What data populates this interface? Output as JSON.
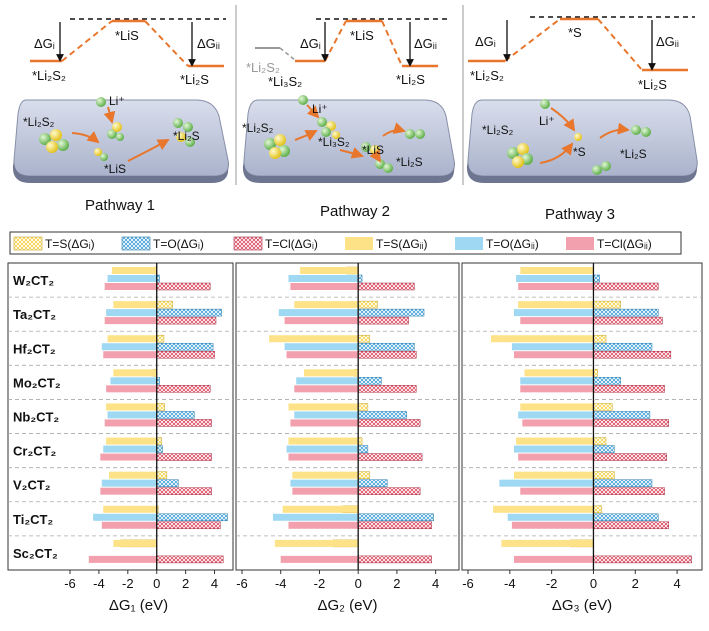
{
  "colors": {
    "S": "#f4d24a",
    "O": "#3f9fd6",
    "Cl": "#d9485f",
    "S_ii": "#fde287",
    "O_ii": "#9fd8f2",
    "Cl_ii": "#f2a0ad",
    "path_orange": "#e8772d",
    "surface": "#bfc8de",
    "sphere_green": "#7cc86a",
    "sphere_yellow": "#f4dd32"
  },
  "pathways": [
    {
      "caption": "Pathway 1",
      "levels": {
        "start": "*Li₂S₂",
        "mid": "*LiS",
        "end": "*Li₂S"
      },
      "dg_labels": {
        "first": "ΔGᵢ",
        "second": "ΔGᵢᵢ"
      },
      "surface_labels": {
        "a": "*Li₂S₂",
        "b": "Li⁺",
        "c": "*Li₂S",
        "d": "*LiS"
      }
    },
    {
      "caption": "Pathway 2",
      "levels": {
        "pre": "*Li₂S₂",
        "start": "*Li₃S₂",
        "mid": "*LiS",
        "end": "*Li₂S"
      },
      "dg_labels": {
        "first": "ΔGᵢ",
        "second": "ΔGᵢᵢ"
      },
      "surface_labels": {
        "a": "*Li₂S₂",
        "b": "Li⁺",
        "c": "*Li₃S₂",
        "d": "*LiS",
        "e": "*Li₂S"
      }
    },
    {
      "caption": "Pathway 3",
      "levels": {
        "start": "*Li₂S₂",
        "mid": "*S",
        "end": "*Li₂S"
      },
      "dg_labels": {
        "first": "ΔGᵢ",
        "second": "ΔGᵢᵢ"
      },
      "surface_labels": {
        "a": "*Li₂S₂",
        "b": "Li⁺",
        "c": "*S",
        "d": "*Li₂S"
      }
    }
  ],
  "legend": [
    {
      "label": "T=S(ΔGᵢ)",
      "key": "S_i"
    },
    {
      "label": "T=O(ΔGᵢ)",
      "key": "O_i"
    },
    {
      "label": "T=Cl(ΔGᵢ)",
      "key": "Cl_i"
    },
    {
      "label": "T=S(ΔGᵢᵢ)",
      "key": "S_ii"
    },
    {
      "label": "T=O(ΔGᵢᵢ)",
      "key": "O_ii"
    },
    {
      "label": "T=Cl(ΔGᵢᵢ)",
      "key": "Cl_ii"
    }
  ],
  "chart_data": {
    "type": "bar",
    "orientation": "horizontal",
    "categories": [
      "W₂CT₂",
      "Ta₂CT₂",
      "Hf₂CT₂",
      "Mo₂CT₂",
      "Nb₂CT₂",
      "Cr₂CT₂",
      "V₂CT₂",
      "Ti₂CT₂",
      "Sc₂CT₂"
    ],
    "series_keys": [
      "S_i",
      "O_i",
      "Cl_i",
      "S_ii",
      "O_ii",
      "Cl_ii"
    ],
    "xlim": [
      -6,
      5
    ],
    "xticks": [
      -6,
      -4,
      -2,
      0,
      2,
      4
    ],
    "panels": [
      {
        "xlabel": "ΔG₁ (eV)",
        "values": {
          "W₂CT₂": {
            "S_i": -0.15,
            "O_i": 0.2,
            "Cl_i": 3.7,
            "S_ii": -3.1,
            "O_ii": -3.4,
            "Cl_ii": -3.6
          },
          "Ta₂CT₂": {
            "S_i": 1.1,
            "O_i": 4.5,
            "Cl_i": 4.1,
            "S_ii": -3.0,
            "O_ii": -3.5,
            "Cl_ii": -3.6
          },
          "Hf₂CT₂": {
            "S_i": 0.5,
            "O_i": 3.9,
            "Cl_i": 4.0,
            "S_ii": -3.4,
            "O_ii": -3.8,
            "Cl_ii": -3.7
          },
          "Mo₂CT₂": {
            "S_i": -0.25,
            "O_i": 0.2,
            "Cl_i": 3.7,
            "S_ii": -3.0,
            "O_ii": -3.2,
            "Cl_ii": -3.5
          },
          "Nb₂CT₂": {
            "S_i": 0.55,
            "O_i": 2.6,
            "Cl_i": 3.8,
            "S_ii": -3.5,
            "O_ii": -3.4,
            "Cl_ii": -3.6
          },
          "Cr₂CT₂": {
            "S_i": 0.35,
            "O_i": 0.4,
            "Cl_i": 3.8,
            "S_ii": -3.5,
            "O_ii": -3.7,
            "Cl_ii": -3.9
          },
          "V₂CT₂": {
            "S_i": 0.7,
            "O_i": 1.5,
            "Cl_i": 3.8,
            "S_ii": -3.3,
            "O_ii": -3.8,
            "Cl_ii": -3.9
          },
          "Ti₂CT₂": {
            "S_i": 0.1,
            "O_i": 4.9,
            "Cl_i": 4.4,
            "S_ii": -3.7,
            "O_ii": -4.4,
            "Cl_ii": -3.8
          },
          "Sc₂CT₂": {
            "S_i": -2.5,
            "O_i": 0.0,
            "Cl_i": 4.6,
            "S_ii": -3.0,
            "O_ii": 0.0,
            "Cl_ii": -4.7
          }
        }
      },
      {
        "xlabel": "ΔG₂ (eV)",
        "values": {
          "W₂CT₂": {
            "S_i": -0.6,
            "O_i": 0.2,
            "Cl_i": 2.9,
            "S_ii": -3.0,
            "O_ii": -3.6,
            "Cl_ii": -3.5
          },
          "Ta₂CT₂": {
            "S_i": 1.0,
            "O_i": 3.4,
            "Cl_i": 2.6,
            "S_ii": -3.3,
            "O_ii": -4.1,
            "Cl_ii": -3.8
          },
          "Hf₂CT₂": {
            "S_i": 0.6,
            "O_i": 2.9,
            "Cl_i": 3.0,
            "S_ii": -4.6,
            "O_ii": -3.8,
            "Cl_ii": -3.7
          },
          "Mo₂CT₂": {
            "S_i": -0.2,
            "O_i": 1.2,
            "Cl_i": 3.0,
            "S_ii": -2.8,
            "O_ii": -3.2,
            "Cl_ii": -3.3
          },
          "Nb₂CT₂": {
            "S_i": 0.5,
            "O_i": 2.5,
            "Cl_i": 3.2,
            "S_ii": -3.6,
            "O_ii": -3.3,
            "Cl_ii": -3.5
          },
          "Cr₂CT₂": {
            "S_i": 0.2,
            "O_i": 0.5,
            "Cl_i": 3.3,
            "S_ii": -3.6,
            "O_ii": -3.7,
            "Cl_ii": -3.6
          },
          "V₂CT₂": {
            "S_i": 0.6,
            "O_i": 1.5,
            "Cl_i": 3.2,
            "S_ii": -3.4,
            "O_ii": -3.5,
            "Cl_ii": -3.4
          },
          "Ti₂CT₂": {
            "S_i": -0.8,
            "O_i": 3.9,
            "Cl_i": 3.8,
            "S_ii": -3.9,
            "O_ii": -4.4,
            "Cl_ii": -3.6
          },
          "Sc₂CT₂": {
            "S_i": -1.3,
            "O_i": 0.0,
            "Cl_i": 3.8,
            "S_ii": -4.3,
            "O_ii": 0.0,
            "Cl_ii": -4.0
          }
        }
      },
      {
        "xlabel": "ΔG₃ (eV)",
        "values": {
          "W₂CT₂": {
            "S_i": 0.0,
            "O_i": 0.3,
            "Cl_i": 3.1,
            "S_ii": -3.5,
            "O_ii": -3.7,
            "Cl_ii": -3.6
          },
          "Ta₂CT₂": {
            "S_i": 1.3,
            "O_i": 3.1,
            "Cl_i": 3.3,
            "S_ii": -3.6,
            "O_ii": -3.8,
            "Cl_ii": -3.5
          },
          "Hf₂CT₂": {
            "S_i": 0.6,
            "O_i": 2.8,
            "Cl_i": 3.7,
            "S_ii": -4.9,
            "O_ii": -3.9,
            "Cl_ii": -3.8
          },
          "Mo₂CT₂": {
            "S_i": 0.2,
            "O_i": 1.3,
            "Cl_i": 3.4,
            "S_ii": -3.3,
            "O_ii": -3.5,
            "Cl_ii": -3.5
          },
          "Nb₂CT₂": {
            "S_i": 0.9,
            "O_i": 2.7,
            "Cl_i": 3.6,
            "S_ii": -3.5,
            "O_ii": -3.6,
            "Cl_ii": -3.4
          },
          "Cr₂CT₂": {
            "S_i": 0.6,
            "O_i": 1.0,
            "Cl_i": 3.5,
            "S_ii": -3.7,
            "O_ii": -3.8,
            "Cl_ii": -3.6
          },
          "V₂CT₂": {
            "S_i": 1.0,
            "O_i": 2.8,
            "Cl_i": 3.4,
            "S_ii": -3.8,
            "O_ii": -4.5,
            "Cl_ii": -3.5
          },
          "Ti₂CT₂": {
            "S_i": 0.4,
            "O_i": 3.1,
            "Cl_i": 3.6,
            "S_ii": -4.8,
            "O_ii": -4.1,
            "Cl_ii": -3.9
          },
          "Sc₂CT₂": {
            "S_i": -1.1,
            "O_i": 0.0,
            "Cl_i": 4.7,
            "S_ii": -4.4,
            "O_ii": 0.0,
            "Cl_ii": -3.8
          }
        }
      }
    ]
  }
}
